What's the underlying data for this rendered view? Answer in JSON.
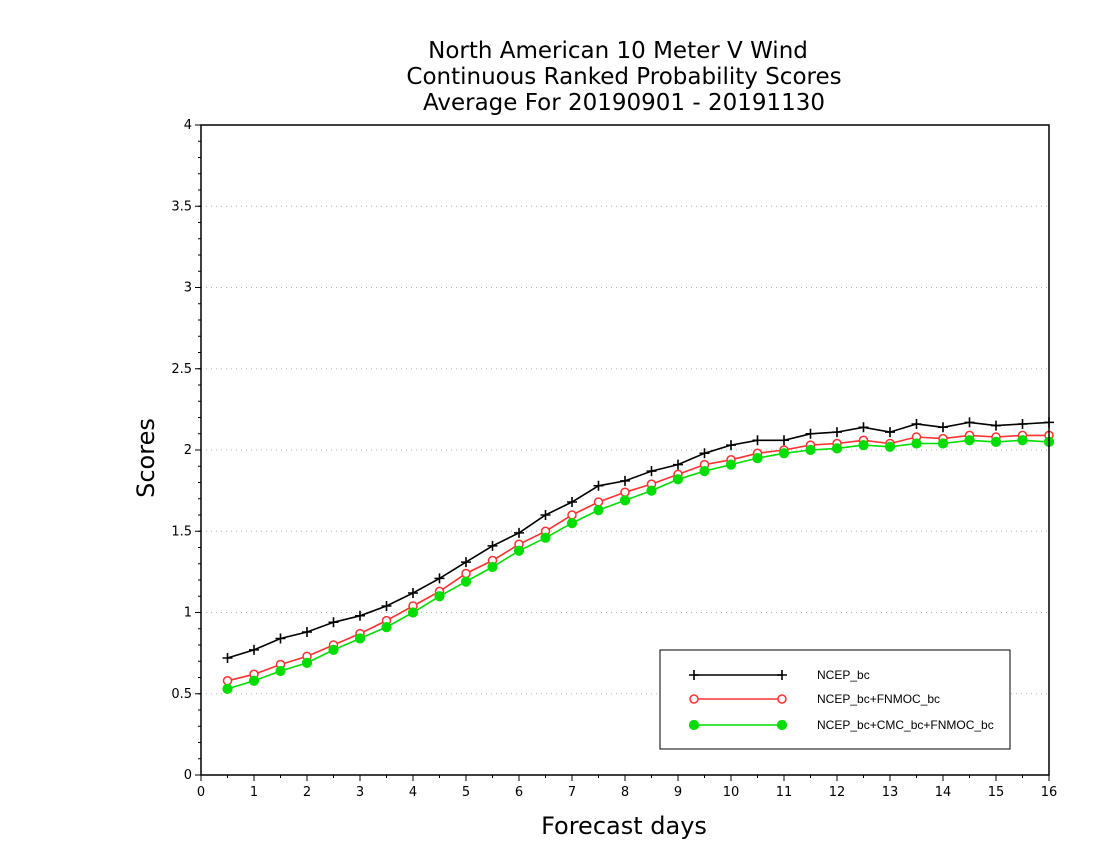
{
  "chart_data": {
    "type": "line",
    "title_lines": [
      "North American 10 Meter V Wind",
      "Continuous Ranked Probability Scores",
      "Average For 20190901 - 20191130"
    ],
    "xlabel": "Forecast days",
    "ylabel": "Scores",
    "xlim": [
      0,
      16
    ],
    "ylim": [
      0,
      4
    ],
    "x_ticks": [
      0,
      1,
      2,
      3,
      4,
      5,
      6,
      7,
      8,
      9,
      10,
      11,
      12,
      13,
      14,
      15,
      16
    ],
    "y_ticks": [
      0,
      0.5,
      1,
      1.5,
      2,
      2.5,
      3,
      3.5,
      4
    ],
    "y_tick_labels": [
      "0",
      "0.5",
      "1",
      "1.5",
      "2",
      "2.5",
      "3",
      "3.5",
      "4"
    ],
    "grid": "horizontal-dotted",
    "legend_position": "bottom-right",
    "x": [
      0.5,
      1,
      1.5,
      2,
      2.5,
      3,
      3.5,
      4,
      4.5,
      5,
      5.5,
      6,
      6.5,
      7,
      7.5,
      8,
      8.5,
      9,
      9.5,
      10,
      10.5,
      11,
      11.5,
      12,
      12.5,
      13,
      13.5,
      14,
      14.5,
      15,
      15.5,
      16
    ],
    "series": [
      {
        "name": "NCEP_bc",
        "color": "#000000",
        "marker": "plus",
        "values": [
          0.72,
          0.77,
          0.84,
          0.88,
          0.94,
          0.98,
          1.04,
          1.12,
          1.21,
          1.31,
          1.41,
          1.49,
          1.6,
          1.68,
          1.78,
          1.81,
          1.87,
          1.91,
          1.98,
          2.03,
          2.06,
          2.06,
          2.1,
          2.11,
          2.14,
          2.11,
          2.16,
          2.14,
          2.17,
          2.15,
          2.16,
          2.17
        ]
      },
      {
        "name": "NCEP_bc+FNMOC_bc",
        "color": "#ff3030",
        "marker": "open-circle",
        "values": [
          0.58,
          0.62,
          0.68,
          0.73,
          0.8,
          0.87,
          0.95,
          1.04,
          1.13,
          1.24,
          1.32,
          1.42,
          1.5,
          1.6,
          1.68,
          1.74,
          1.79,
          1.85,
          1.91,
          1.94,
          1.98,
          2.0,
          2.03,
          2.04,
          2.06,
          2.04,
          2.08,
          2.07,
          2.09,
          2.08,
          2.09,
          2.09
        ]
      },
      {
        "name": "NCEP_bc+CMC_bc+FNMOC_bc",
        "color": "#00dd00",
        "marker": "filled-circle",
        "values": [
          0.53,
          0.58,
          0.64,
          0.69,
          0.77,
          0.84,
          0.91,
          1.0,
          1.1,
          1.19,
          1.28,
          1.38,
          1.46,
          1.55,
          1.63,
          1.69,
          1.75,
          1.82,
          1.87,
          1.91,
          1.95,
          1.98,
          2.0,
          2.01,
          2.03,
          2.02,
          2.04,
          2.04,
          2.06,
          2.05,
          2.06,
          2.05
        ]
      }
    ]
  }
}
